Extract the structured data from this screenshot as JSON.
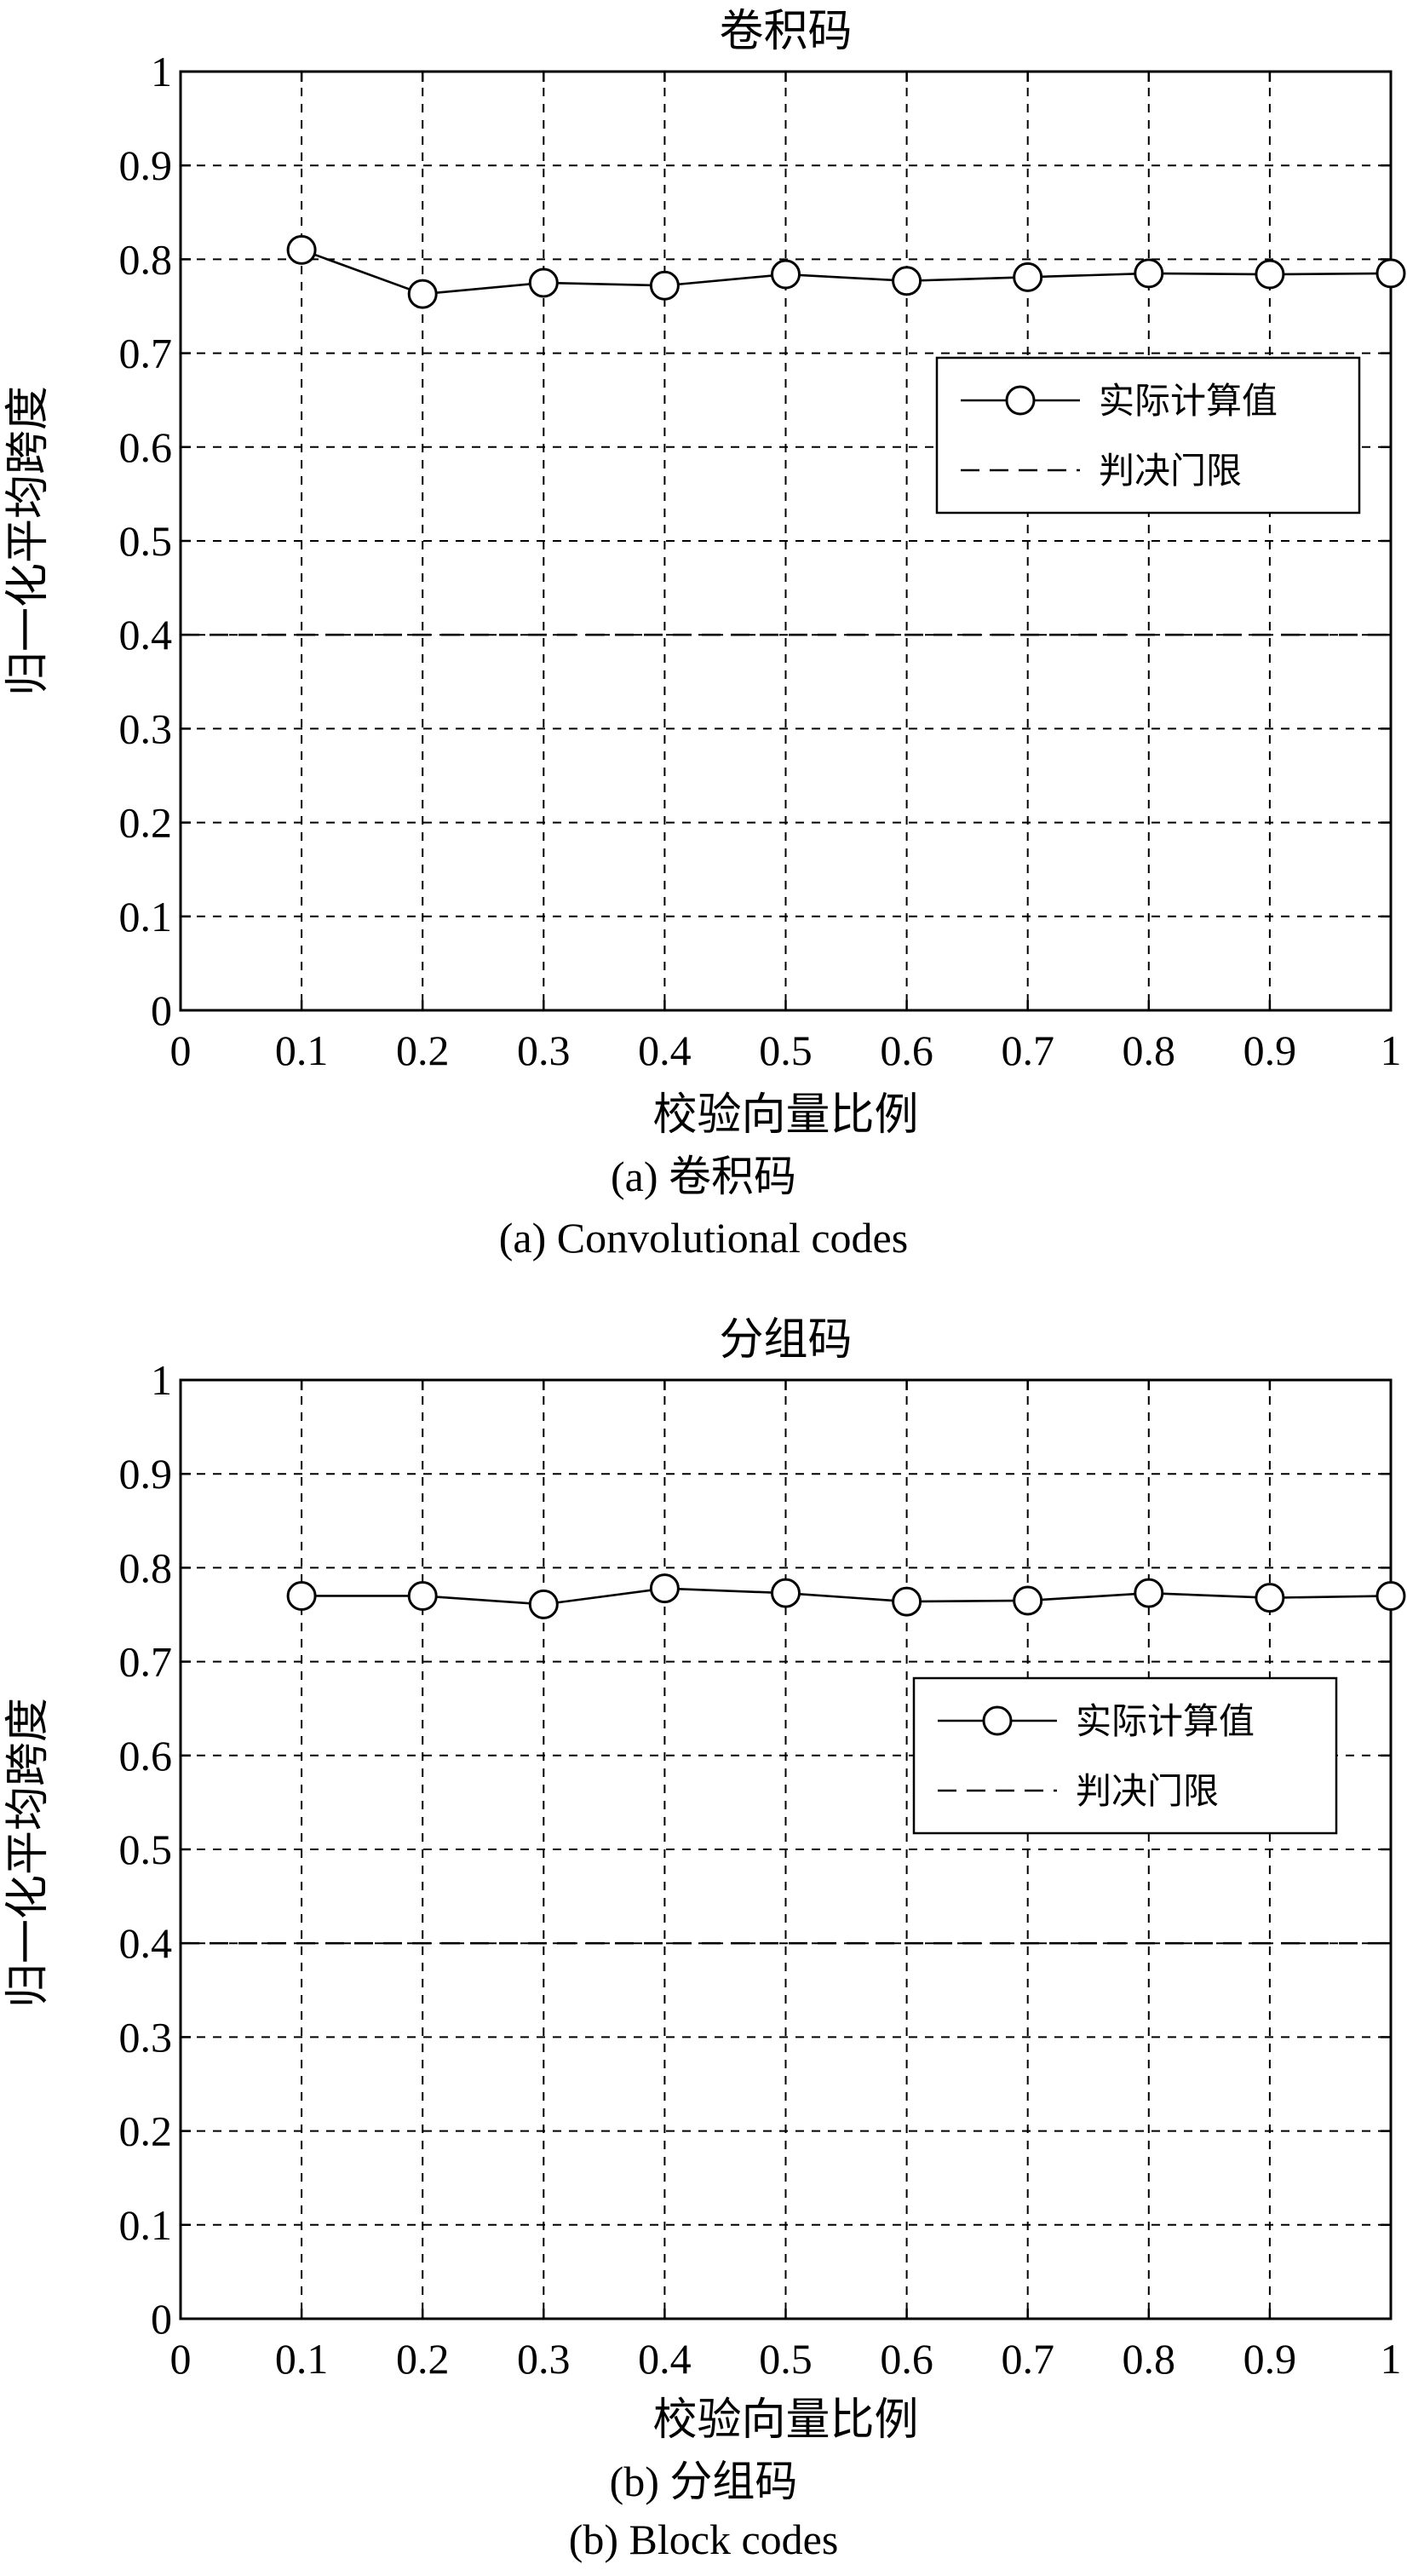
{
  "chart_data": [
    {
      "type": "line",
      "title": "卷积码",
      "xlabel": "校验向量比例",
      "ylabel": "归一化平均跨度",
      "caption_cn": "(a) 卷积码",
      "caption_en": "(a) Convolutional codes",
      "xlim": [
        0,
        1
      ],
      "ylim": [
        0,
        1
      ],
      "xticks": [
        "0",
        "0.1",
        "0.2",
        "0.3",
        "0.4",
        "0.5",
        "0.6",
        "0.7",
        "0.8",
        "0.9",
        "1"
      ],
      "yticks": [
        "0",
        "0.1",
        "0.2",
        "0.3",
        "0.4",
        "0.5",
        "0.6",
        "0.7",
        "0.8",
        "0.9",
        "1"
      ],
      "grid": true,
      "legend_position": "center-right",
      "series": [
        {
          "name": "实际计算值",
          "style": "solid-circle",
          "x": [
            0.1,
            0.2,
            0.3,
            0.4,
            0.5,
            0.6,
            0.7,
            0.8,
            0.9,
            1.0
          ],
          "y": [
            0.81,
            0.763,
            0.775,
            0.772,
            0.784,
            0.777,
            0.781,
            0.785,
            0.784,
            0.785
          ]
        },
        {
          "name": "判决门限",
          "style": "dashed",
          "x": [
            0,
            1
          ],
          "y": [
            0.4,
            0.4
          ]
        }
      ]
    },
    {
      "type": "line",
      "title": "分组码",
      "xlabel": "校验向量比例",
      "ylabel": "归一化平均跨度",
      "caption_cn": "(b) 分组码",
      "caption_en": "(b) Block codes",
      "xlim": [
        0,
        1
      ],
      "ylim": [
        0,
        1
      ],
      "xticks": [
        "0",
        "0.1",
        "0.2",
        "0.3",
        "0.4",
        "0.5",
        "0.6",
        "0.7",
        "0.8",
        "0.9",
        "1"
      ],
      "yticks": [
        "0",
        "0.1",
        "0.2",
        "0.3",
        "0.4",
        "0.5",
        "0.6",
        "0.7",
        "0.8",
        "0.9",
        "1"
      ],
      "grid": true,
      "legend_position": "center-right",
      "series": [
        {
          "name": "实际计算值",
          "style": "solid-circle",
          "x": [
            0.1,
            0.2,
            0.3,
            0.4,
            0.5,
            0.6,
            0.7,
            0.8,
            0.9,
            1.0
          ],
          "y": [
            0.77,
            0.77,
            0.761,
            0.778,
            0.773,
            0.764,
            0.765,
            0.773,
            0.768,
            0.77
          ]
        },
        {
          "name": "判决门限",
          "style": "dashed",
          "x": [
            0,
            1
          ],
          "y": [
            0.4,
            0.4
          ]
        }
      ]
    }
  ]
}
